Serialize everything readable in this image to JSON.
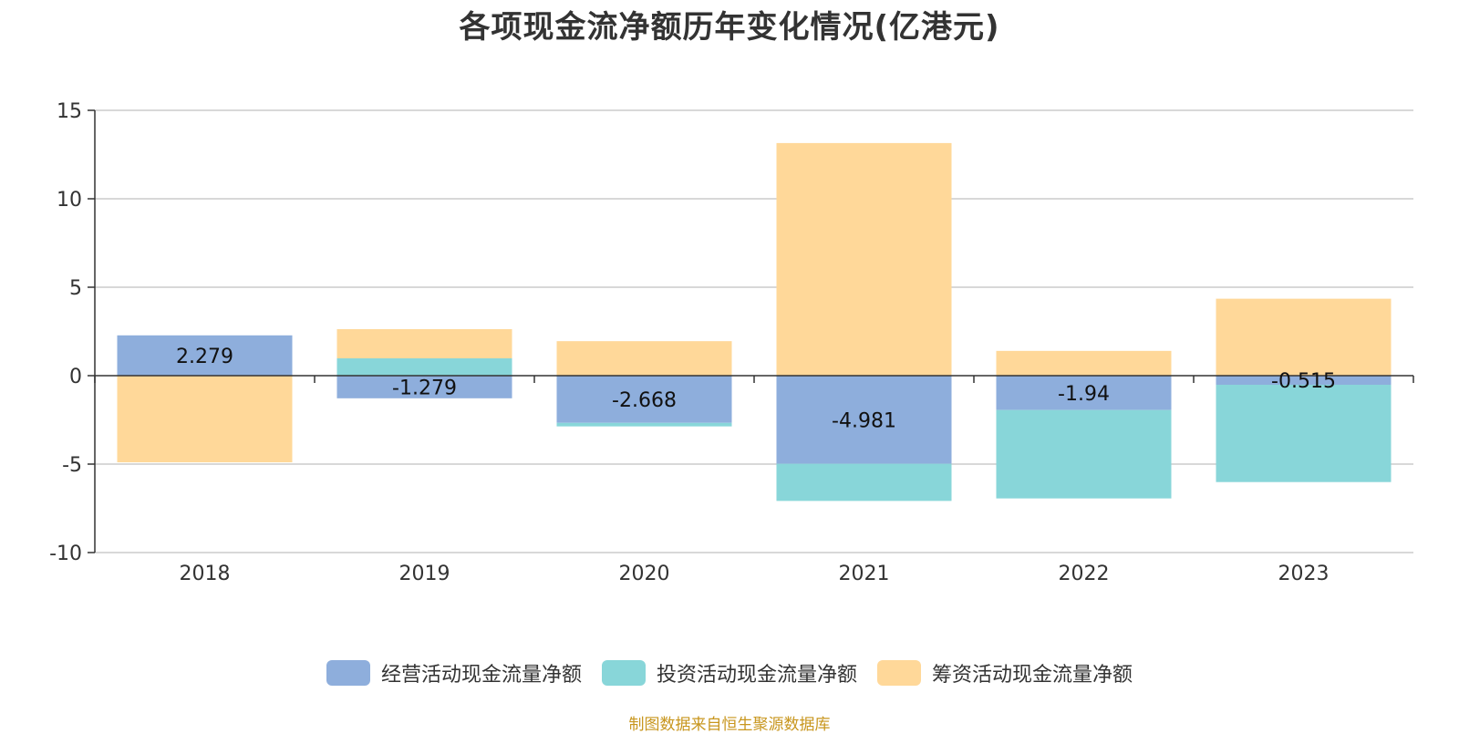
{
  "title": "各项现金流净额历年变化情况(亿港元)",
  "source": "制图数据来自恒生聚源数据库",
  "chart_data": {
    "type": "bar",
    "stacked": true,
    "categories": [
      "2018",
      "2019",
      "2020",
      "2021",
      "2022",
      "2023"
    ],
    "ylim": [
      -10,
      15
    ],
    "yticks": [
      15,
      10,
      5,
      0,
      -5,
      -10
    ],
    "grid": true,
    "legend_position": "bottom",
    "series": [
      {
        "name": "经营活动现金流量净额",
        "color": "#8eaedc",
        "values": [
          2.279,
          -1.279,
          -2.668,
          -4.981,
          -1.94,
          -0.515
        ]
      },
      {
        "name": "投资活动现金流量净额",
        "color": "#88d6d9",
        "values": [
          0,
          0.98,
          -0.2,
          -2.1,
          -5.0,
          -5.5
        ]
      },
      {
        "name": "筹资活动现金流量净额",
        "color": "#ffd899",
        "values": [
          -4.9,
          1.65,
          1.95,
          13.15,
          1.4,
          4.35
        ]
      }
    ],
    "data_labels": [
      "2.279",
      "-1.279",
      "-2.668",
      "-4.981",
      "-1.94",
      "-0.515"
    ]
  }
}
